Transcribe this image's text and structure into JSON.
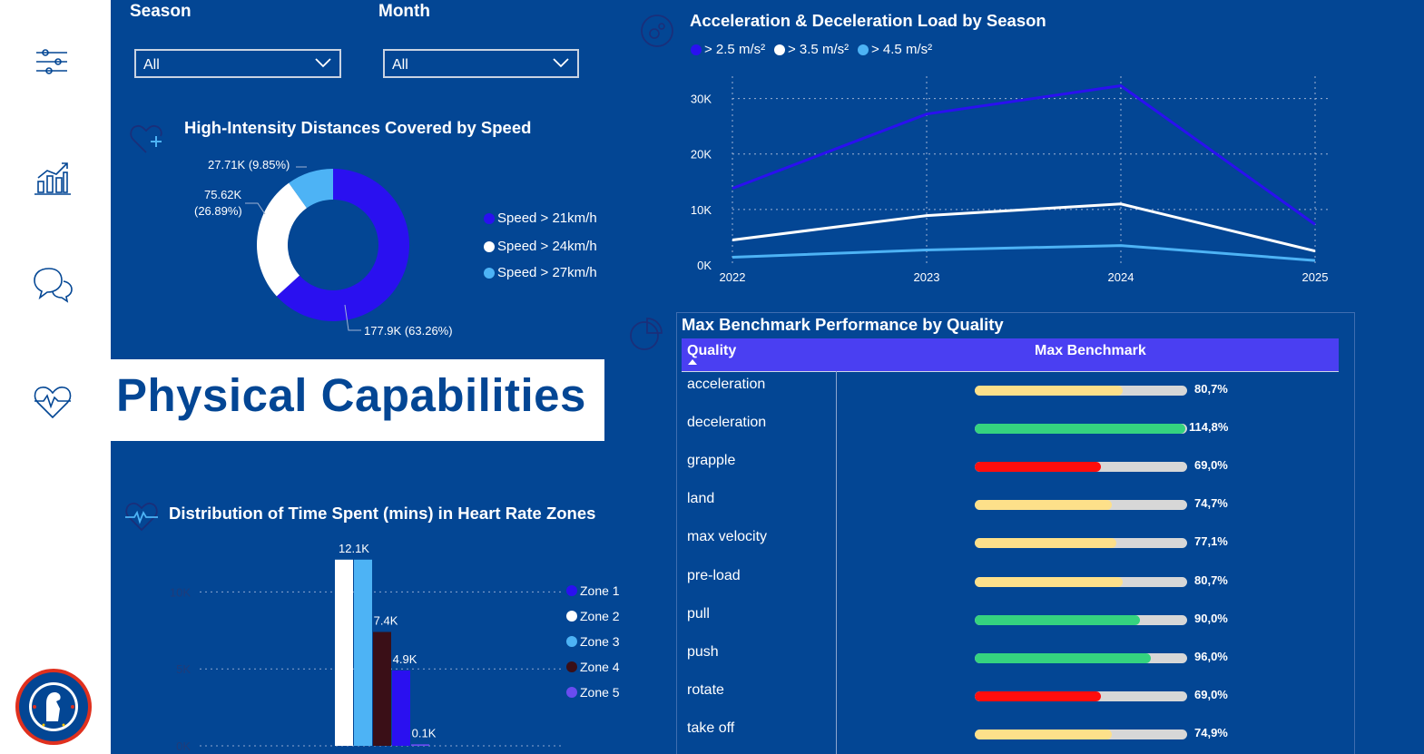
{
  "filters": {
    "season_label": "Season",
    "season_value": "All",
    "month_label": "Month",
    "month_value": "All"
  },
  "banner": {
    "title": "Physical Capabilities"
  },
  "nav": [
    "filters-icon",
    "analytics-icon",
    "chat-icon",
    "heart-rate-icon"
  ],
  "logo": "chelsea-crest",
  "donut": {
    "title": "High-Intensity Distances Covered by Speed",
    "chart_data": {
      "type": "pie",
      "labels": [
        "Speed > 21km/h",
        "Speed > 24km/h",
        "Speed > 27km/h"
      ],
      "values": [
        177.9,
        75.62,
        27.71
      ],
      "unit": "K",
      "percent": [
        63.26,
        26.89,
        9.85
      ],
      "colors": [
        "#2a10f0",
        "#ffffff",
        "#4db3f5"
      ]
    },
    "label_1": "177.9K (63.26%)",
    "label_2_line1": "75.62K",
    "label_2_line2": "(26.89%)",
    "label_3": "27.71K (9.85%)",
    "legend": [
      "Speed > 21km/h",
      "Speed > 24km/h",
      "Speed > 27km/h"
    ]
  },
  "line": {
    "title": "Acceleration & Deceleration Load by Season",
    "legend": [
      "> 2.5 m/s²",
      "> 3.5 m/s²",
      "> 4.5 m/s²"
    ],
    "chart_data": {
      "type": "line",
      "x": [
        "2022",
        "2023",
        "2024",
        "2025"
      ],
      "series": [
        {
          "name": "> 2.5 m/s²",
          "values": [
            13800,
            27200,
            32300,
            7300
          ],
          "color": "#2a10f0"
        },
        {
          "name": "> 3.5 m/s²",
          "values": [
            4500,
            8900,
            11000,
            2500
          ],
          "color": "#ffffff"
        },
        {
          "name": "> 4.5 m/s²",
          "values": [
            1400,
            2700,
            3500,
            800
          ],
          "color": "#4db3f5"
        }
      ],
      "yticks": [
        "0K",
        "10K",
        "20K",
        "30K"
      ],
      "ylim": [
        0,
        35000
      ],
      "grid": true
    }
  },
  "hr": {
    "title": "Distribution of Time Spent (mins) in Heart Rate Zones",
    "legend": [
      "Zone 1",
      "Zone 2",
      "Zone 3",
      "Zone 4",
      "Zone 5"
    ],
    "chart_data": {
      "type": "bar",
      "categories": [
        "Zone 1",
        "Zone 2",
        "Zone 3",
        "Zone 4",
        "Zone 5"
      ],
      "values": [
        12100,
        12100,
        7400,
        4900,
        100
      ],
      "data_labels": [
        "",
        "12.1K",
        "7.4K",
        "4.9K",
        "0.1K"
      ],
      "colors": [
        "#ffffff",
        "#4db3f5",
        "#3a0f17",
        "#2a10f0",
        "#6a4cf0"
      ],
      "legend_colors": [
        "#2a10f0",
        "#ffffff",
        "#4db3f5",
        "#3a0f17",
        "#6a4cf0"
      ],
      "yticks": [
        "0K",
        "5K",
        "10K"
      ],
      "ylim": [
        0,
        12500
      ]
    }
  },
  "benchmark": {
    "title": "Max Benchmark Performance by Quality",
    "col_quality": "Quality",
    "col_benchmark": "Max Benchmark",
    "rows": [
      {
        "quality": "acceleration",
        "value": 80.7,
        "label": "80,7%",
        "color": "#fde08a"
      },
      {
        "quality": "deceleration",
        "value": 114.8,
        "label": "114,8%",
        "color": "#35d37f"
      },
      {
        "quality": "grapple",
        "value": 69.0,
        "label": "69,0%",
        "color": "#ff0d0d"
      },
      {
        "quality": "land",
        "value": 74.7,
        "label": "74,7%",
        "color": "#fde08a"
      },
      {
        "quality": "max velocity",
        "value": 77.1,
        "label": "77,1%",
        "color": "#fde08a"
      },
      {
        "quality": "pre-load",
        "value": 80.7,
        "label": "80,7%",
        "color": "#fde08a"
      },
      {
        "quality": "pull",
        "value": 90.0,
        "label": "90,0%",
        "color": "#35d37f"
      },
      {
        "quality": "push",
        "value": 96.0,
        "label": "96,0%",
        "color": "#35d37f"
      },
      {
        "quality": "rotate",
        "value": 69.0,
        "label": "69,0%",
        "color": "#ff0d0d"
      },
      {
        "quality": "take off",
        "value": 74.9,
        "label": "74,9%",
        "color": "#fde08a"
      }
    ]
  }
}
